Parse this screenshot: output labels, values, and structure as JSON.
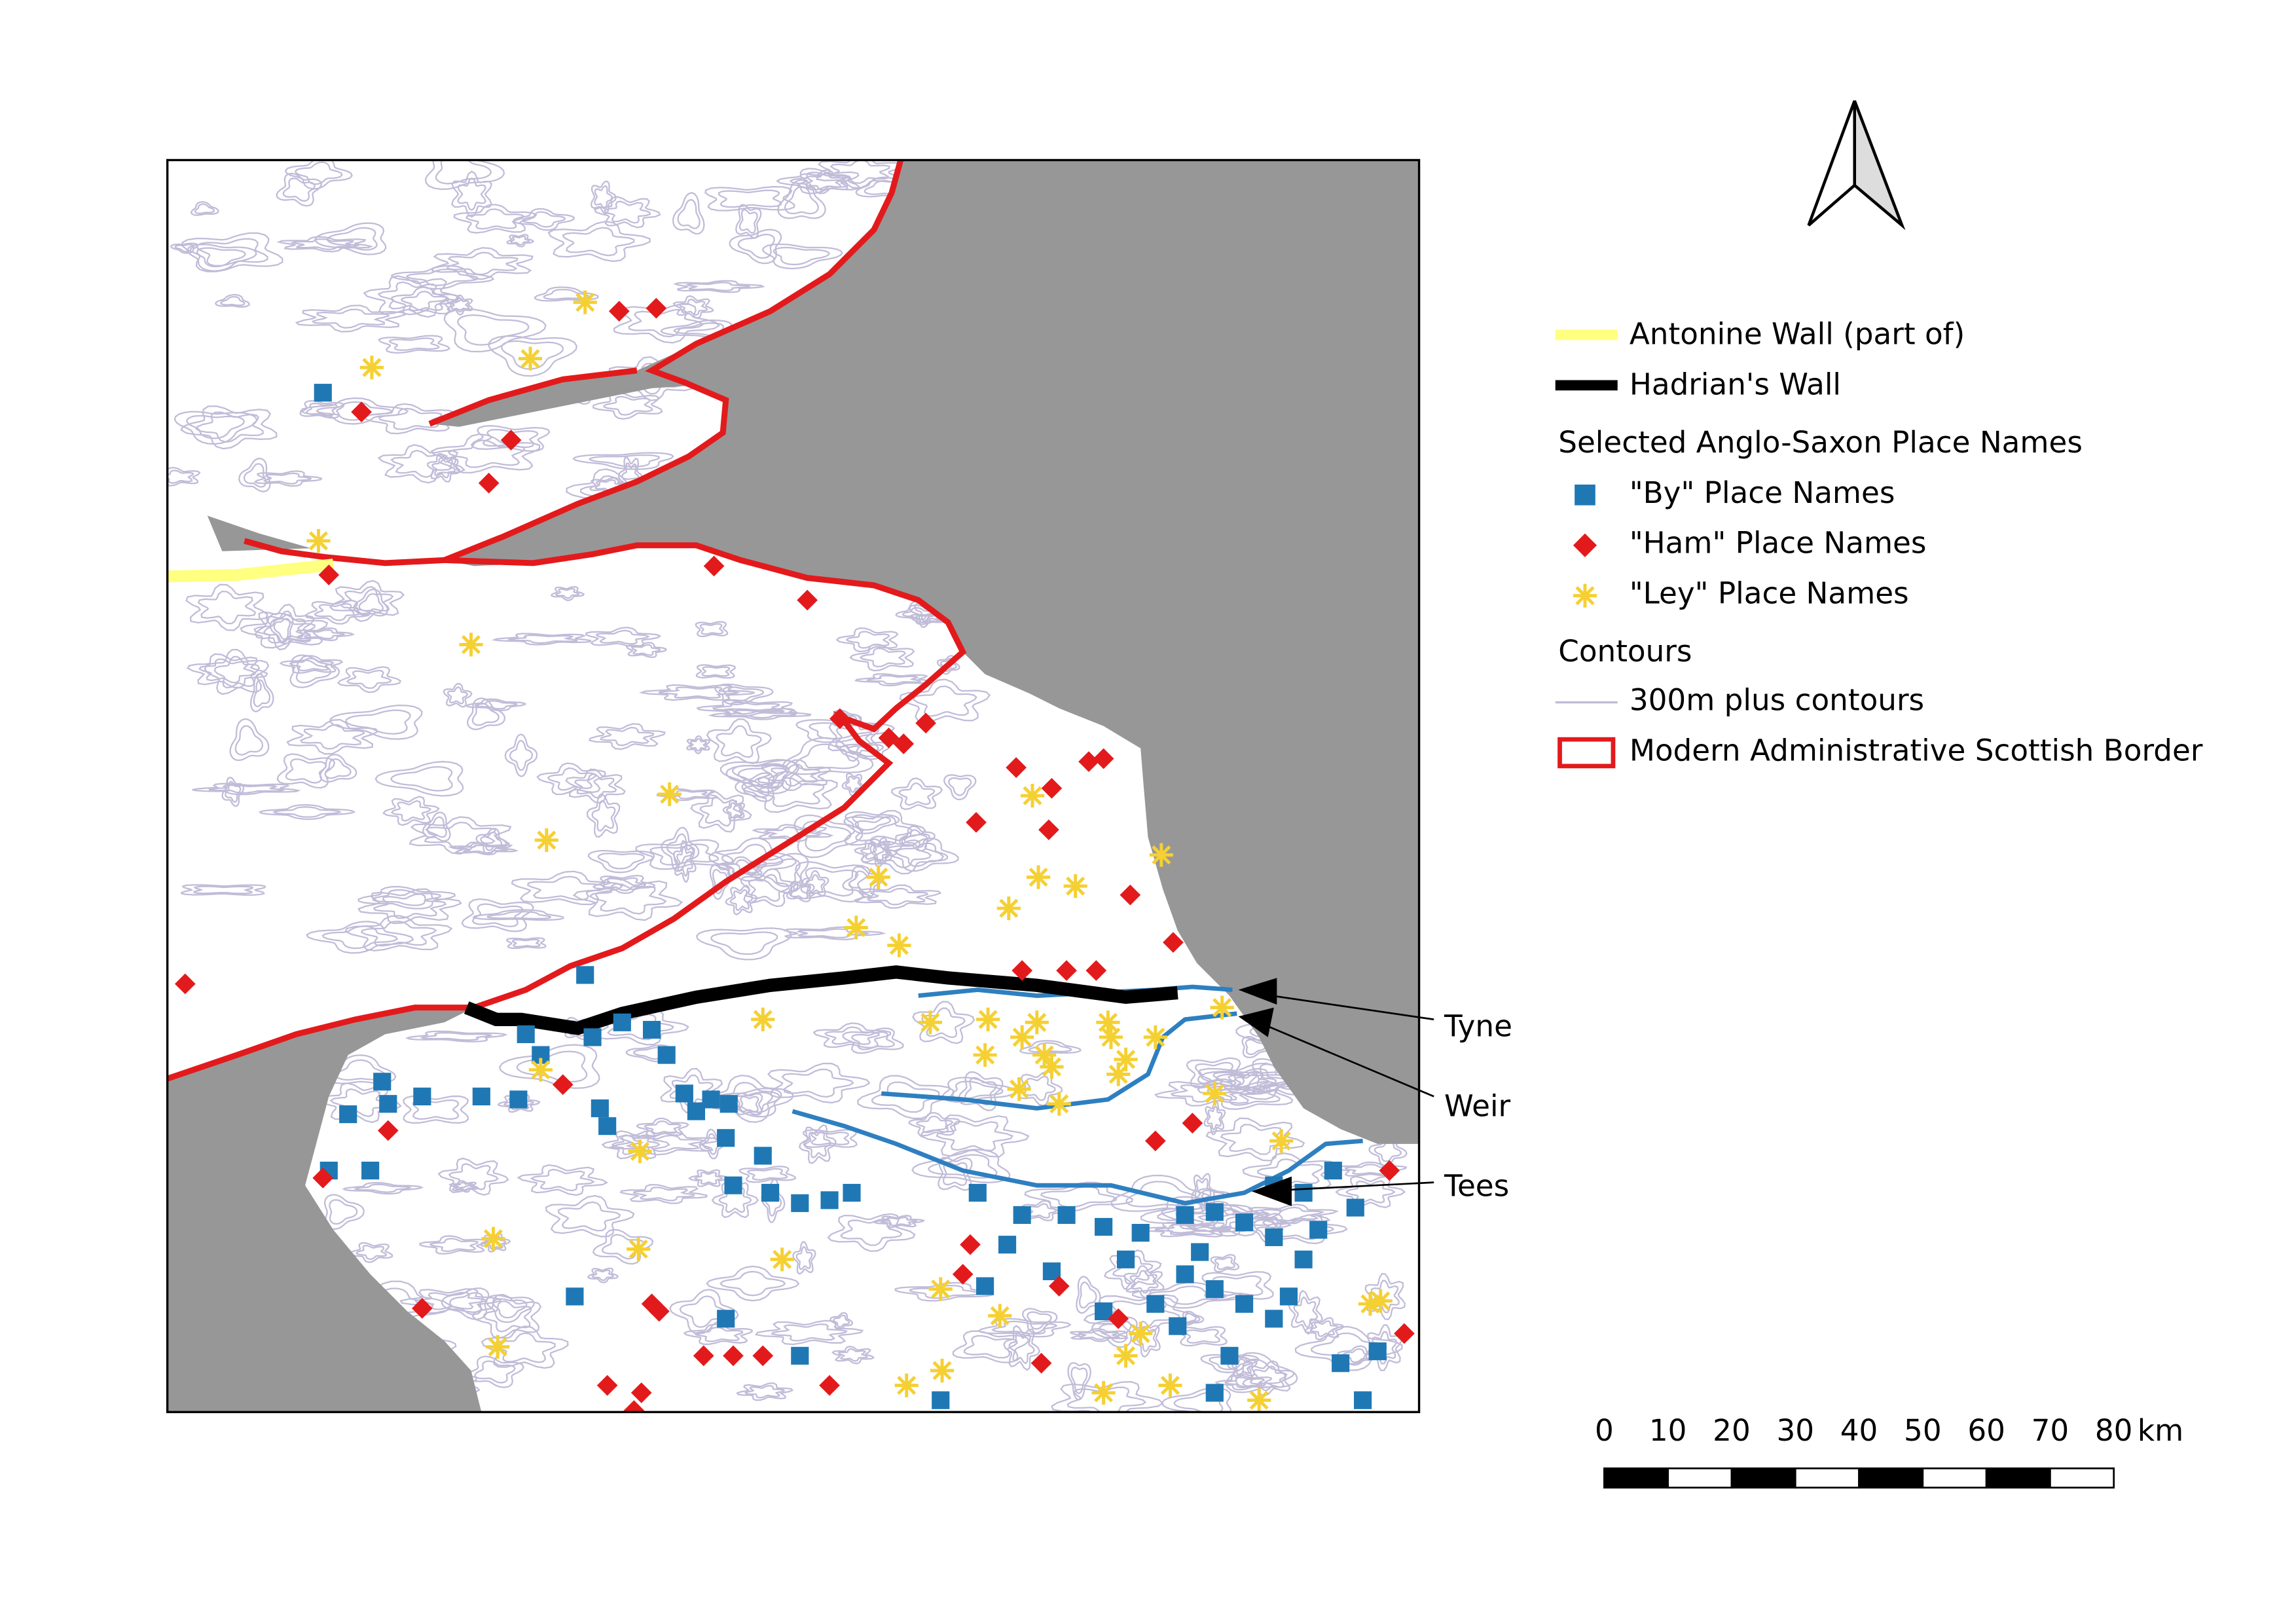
{
  "legend": {
    "antonine": "Antonine Wall (part of)",
    "hadrian": "Hadrian's Wall",
    "place_names_heading": "Selected Anglo-Saxon Place Names",
    "by": "\"By\" Place Names",
    "ham": "\"Ham\" Place Names",
    "ley": "\"Ley\" Place Names",
    "contours_heading": "Contours",
    "contours": "300m plus contours",
    "border": "Modern Administrative Scottish Border"
  },
  "rivers": [
    "Tyne",
    "Weir",
    "Tees"
  ],
  "scale_bar": {
    "ticks": [
      0,
      10,
      20,
      30,
      40,
      50,
      60,
      70,
      80
    ],
    "unit": "km"
  }
}
